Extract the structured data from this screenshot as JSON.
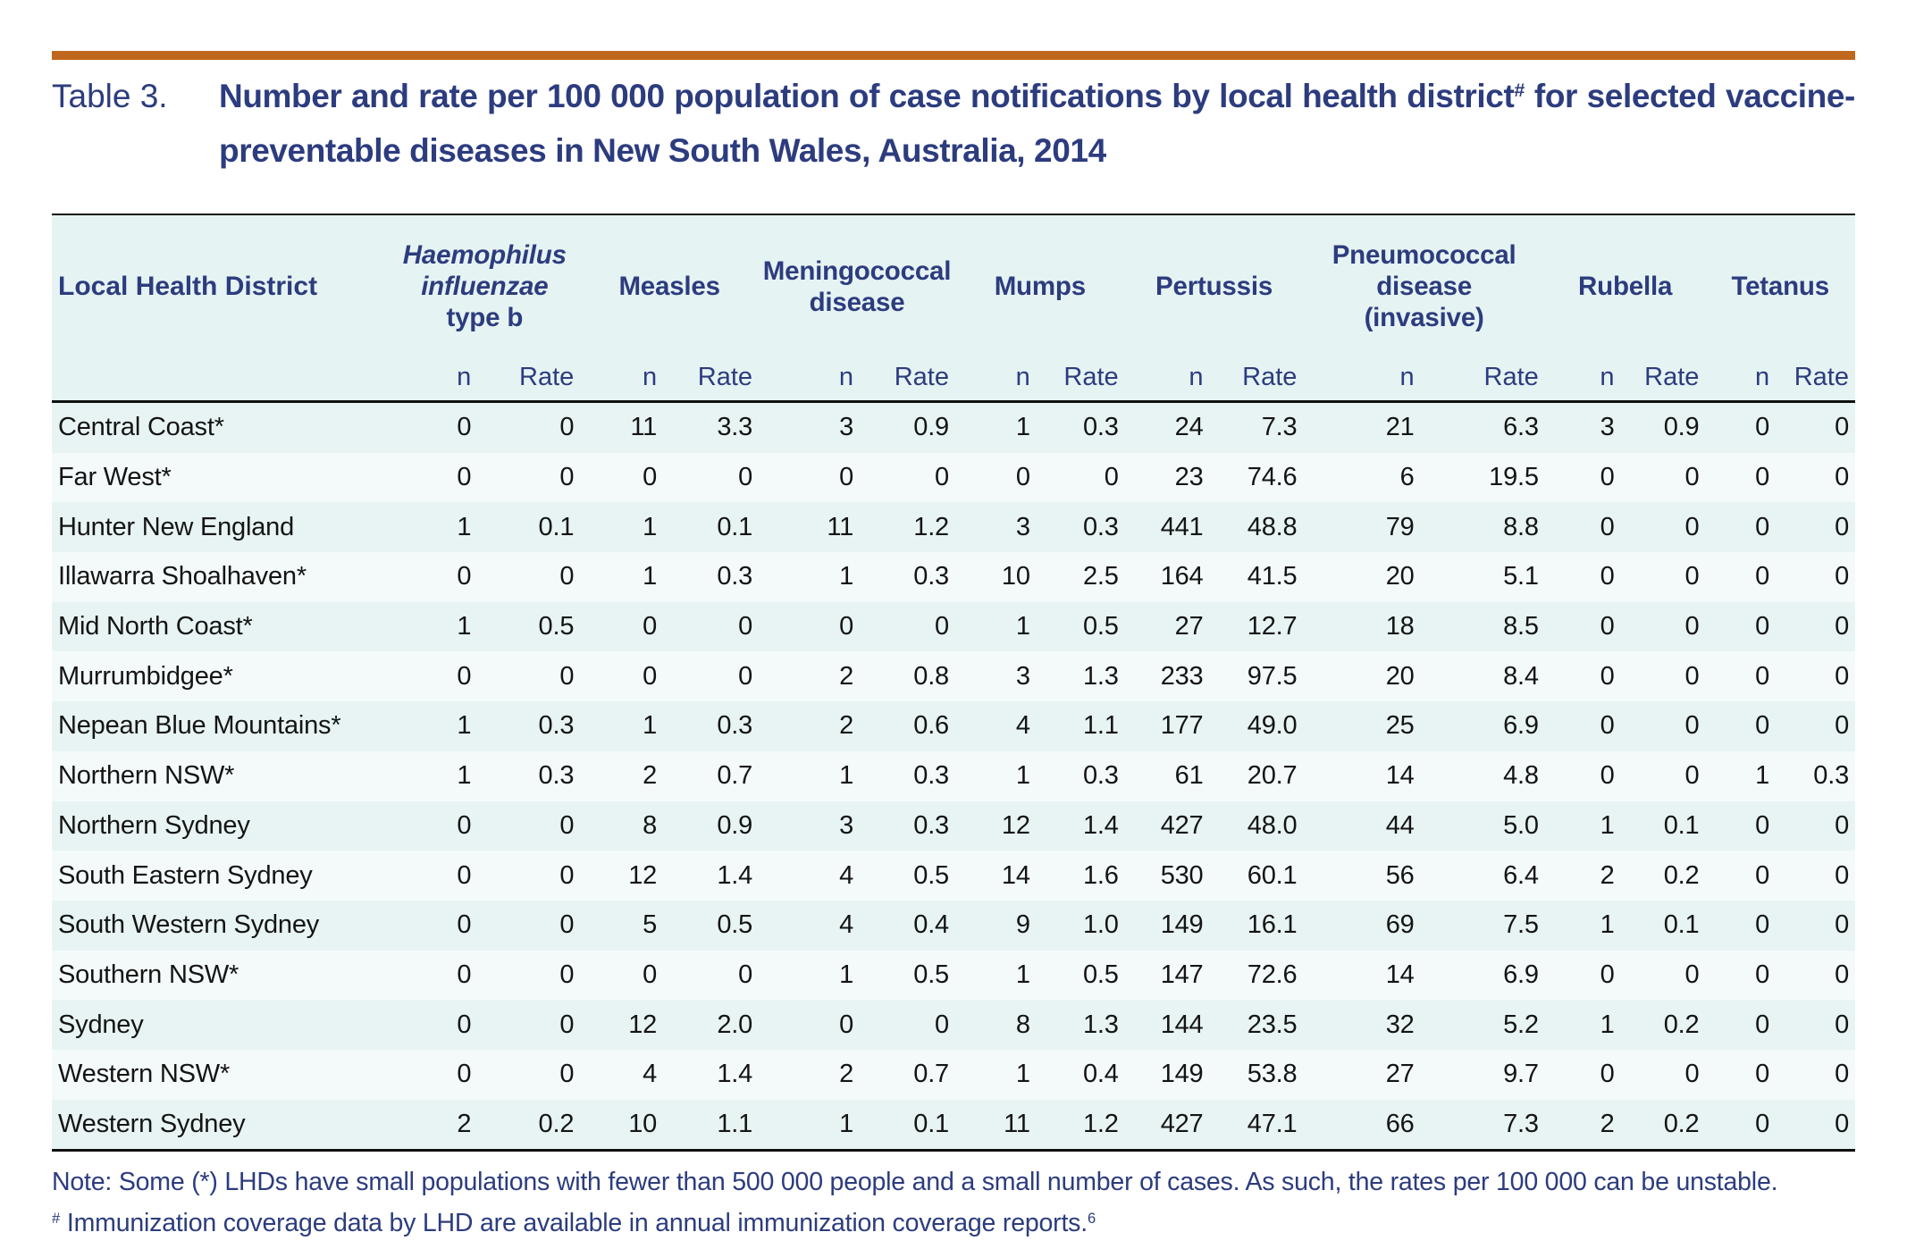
{
  "page": {
    "table_label": "Table 3.",
    "title": {
      "text_before_sup": "Number and rate per 100 000 population of case notifications by local health district",
      "sup": "#",
      "text_after_sup": "for selected vaccine-preventable diseases in New South Wales, Australia, 2014"
    }
  },
  "table": {
    "district_header": "Local Health District",
    "subheaders": {
      "n": "n",
      "rate": "Rate"
    },
    "groups": [
      {
        "id": "hib",
        "label": "Haemophilus influenzae type b",
        "lines": [
          {
            "text": "Haemophilus",
            "italic": true
          },
          {
            "text": "influenzae",
            "italic": true
          },
          {
            "text": "type b",
            "italic": false
          }
        ]
      },
      {
        "id": "measles",
        "label": "Measles",
        "lines": [
          {
            "text": "Measles",
            "italic": false
          }
        ]
      },
      {
        "id": "meningococcal",
        "label": "Meningococcal disease",
        "lines": [
          {
            "text": "Meningococcal",
            "italic": false
          },
          {
            "text": "disease",
            "italic": false
          }
        ]
      },
      {
        "id": "mumps",
        "label": "Mumps",
        "lines": [
          {
            "text": "Mumps",
            "italic": false
          }
        ]
      },
      {
        "id": "pertussis",
        "label": "Pertussis",
        "lines": [
          {
            "text": "Pertussis",
            "italic": false
          }
        ]
      },
      {
        "id": "pneumococcal",
        "label": "Pneumococcal disease (invasive)",
        "lines": [
          {
            "text": "Pneumococcal",
            "italic": false
          },
          {
            "text": "disease",
            "italic": false
          },
          {
            "text": "(invasive)",
            "italic": false
          }
        ]
      },
      {
        "id": "rubella",
        "label": "Rubella",
        "lines": [
          {
            "text": "Rubella",
            "italic": false
          }
        ]
      },
      {
        "id": "tetanus",
        "label": "Tetanus",
        "lines": [
          {
            "text": "Tetanus",
            "italic": false
          }
        ]
      }
    ],
    "rows": [
      {
        "district": "Central Coast*",
        "values": [
          "0",
          "0",
          "11",
          "3.3",
          "3",
          "0.9",
          "1",
          "0.3",
          "24",
          "7.3",
          "21",
          "6.3",
          "3",
          "0.9",
          "0",
          "0"
        ]
      },
      {
        "district": "Far West*",
        "values": [
          "0",
          "0",
          "0",
          "0",
          "0",
          "0",
          "0",
          "0",
          "23",
          "74.6",
          "6",
          "19.5",
          "0",
          "0",
          "0",
          "0"
        ]
      },
      {
        "district": "Hunter New England",
        "values": [
          "1",
          "0.1",
          "1",
          "0.1",
          "11",
          "1.2",
          "3",
          "0.3",
          "441",
          "48.8",
          "79",
          "8.8",
          "0",
          "0",
          "0",
          "0"
        ]
      },
      {
        "district": "Illawarra Shoalhaven*",
        "values": [
          "0",
          "0",
          "1",
          "0.3",
          "1",
          "0.3",
          "10",
          "2.5",
          "164",
          "41.5",
          "20",
          "5.1",
          "0",
          "0",
          "0",
          "0"
        ]
      },
      {
        "district": "Mid North Coast*",
        "values": [
          "1",
          "0.5",
          "0",
          "0",
          "0",
          "0",
          "1",
          "0.5",
          "27",
          "12.7",
          "18",
          "8.5",
          "0",
          "0",
          "0",
          "0"
        ]
      },
      {
        "district": "Murrumbidgee*",
        "values": [
          "0",
          "0",
          "0",
          "0",
          "2",
          "0.8",
          "3",
          "1.3",
          "233",
          "97.5",
          "20",
          "8.4",
          "0",
          "0",
          "0",
          "0"
        ]
      },
      {
        "district": "Nepean Blue Mountains*",
        "values": [
          "1",
          "0.3",
          "1",
          "0.3",
          "2",
          "0.6",
          "4",
          "1.1",
          "177",
          "49.0",
          "25",
          "6.9",
          "0",
          "0",
          "0",
          "0"
        ]
      },
      {
        "district": "Northern NSW*",
        "values": [
          "1",
          "0.3",
          "2",
          "0.7",
          "1",
          "0.3",
          "1",
          "0.3",
          "61",
          "20.7",
          "14",
          "4.8",
          "0",
          "0",
          "1",
          "0.3"
        ]
      },
      {
        "district": "Northern Sydney",
        "values": [
          "0",
          "0",
          "8",
          "0.9",
          "3",
          "0.3",
          "12",
          "1.4",
          "427",
          "48.0",
          "44",
          "5.0",
          "1",
          "0.1",
          "0",
          "0"
        ]
      },
      {
        "district": "South Eastern Sydney",
        "values": [
          "0",
          "0",
          "12",
          "1.4",
          "4",
          "0.5",
          "14",
          "1.6",
          "530",
          "60.1",
          "56",
          "6.4",
          "2",
          "0.2",
          "0",
          "0"
        ]
      },
      {
        "district": "South Western Sydney",
        "values": [
          "0",
          "0",
          "5",
          "0.5",
          "4",
          "0.4",
          "9",
          "1.0",
          "149",
          "16.1",
          "69",
          "7.5",
          "1",
          "0.1",
          "0",
          "0"
        ]
      },
      {
        "district": "Southern NSW*",
        "values": [
          "0",
          "0",
          "0",
          "0",
          "1",
          "0.5",
          "1",
          "0.5",
          "147",
          "72.6",
          "14",
          "6.9",
          "0",
          "0",
          "0",
          "0"
        ]
      },
      {
        "district": "Sydney",
        "values": [
          "0",
          "0",
          "12",
          "2.0",
          "0",
          "0",
          "8",
          "1.3",
          "144",
          "23.5",
          "32",
          "5.2",
          "1",
          "0.2",
          "0",
          "0"
        ]
      },
      {
        "district": "Western NSW*",
        "values": [
          "0",
          "0",
          "4",
          "1.4",
          "2",
          "0.7",
          "1",
          "0.4",
          "149",
          "53.8",
          "27",
          "9.7",
          "0",
          "0",
          "0",
          "0"
        ]
      },
      {
        "district": "Western Sydney",
        "values": [
          "2",
          "0.2",
          "10",
          "1.1",
          "1",
          "0.1",
          "11",
          "1.2",
          "427",
          "47.1",
          "66",
          "7.3",
          "2",
          "0.2",
          "0",
          "0"
        ]
      }
    ]
  },
  "notes": {
    "note1": "Note: Some (*) LHDs have small populations with fewer than 500 000 people and a small number of cases. As such, the rates per 100 000 can be unstable.",
    "note2_sup": "#",
    "note2_text": "Immunization coverage data by LHD are available in annual immunization coverage reports.",
    "note2_ref": "6"
  },
  "colors": {
    "accent_rule": "#bf671d",
    "heading_navy": "#2c3c7e",
    "header_stripe": "#e6f3f3",
    "row_stripe_odd": "#e8f4f4",
    "row_stripe_even": "#f4fafa",
    "rule_black": "#101010",
    "data_text": "#141414"
  }
}
